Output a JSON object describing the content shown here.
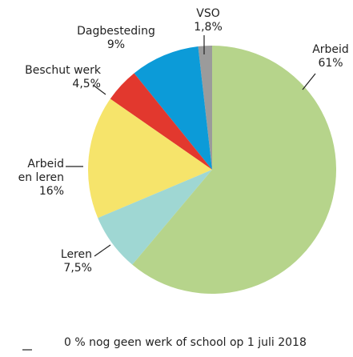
{
  "chart_data": {
    "type": "pie",
    "categories": [
      "Arbeid",
      "Leren",
      "Arbeid en leren",
      "Beschut werk",
      "Dagbesteding",
      "VSO"
    ],
    "values": [
      61,
      7.5,
      16,
      4.5,
      9,
      1.8
    ],
    "value_labels": [
      "61%",
      "7,5%",
      "16%",
      "4,5%",
      "9%",
      "1,8%"
    ],
    "colors": [
      "#b6d48b",
      "#9fd7d3",
      "#f6e46b",
      "#e2382e",
      "#0c9bd8",
      "#9b9b9b"
    ],
    "note": "0 % nog geen werk of school op 1 juli 2018"
  }
}
